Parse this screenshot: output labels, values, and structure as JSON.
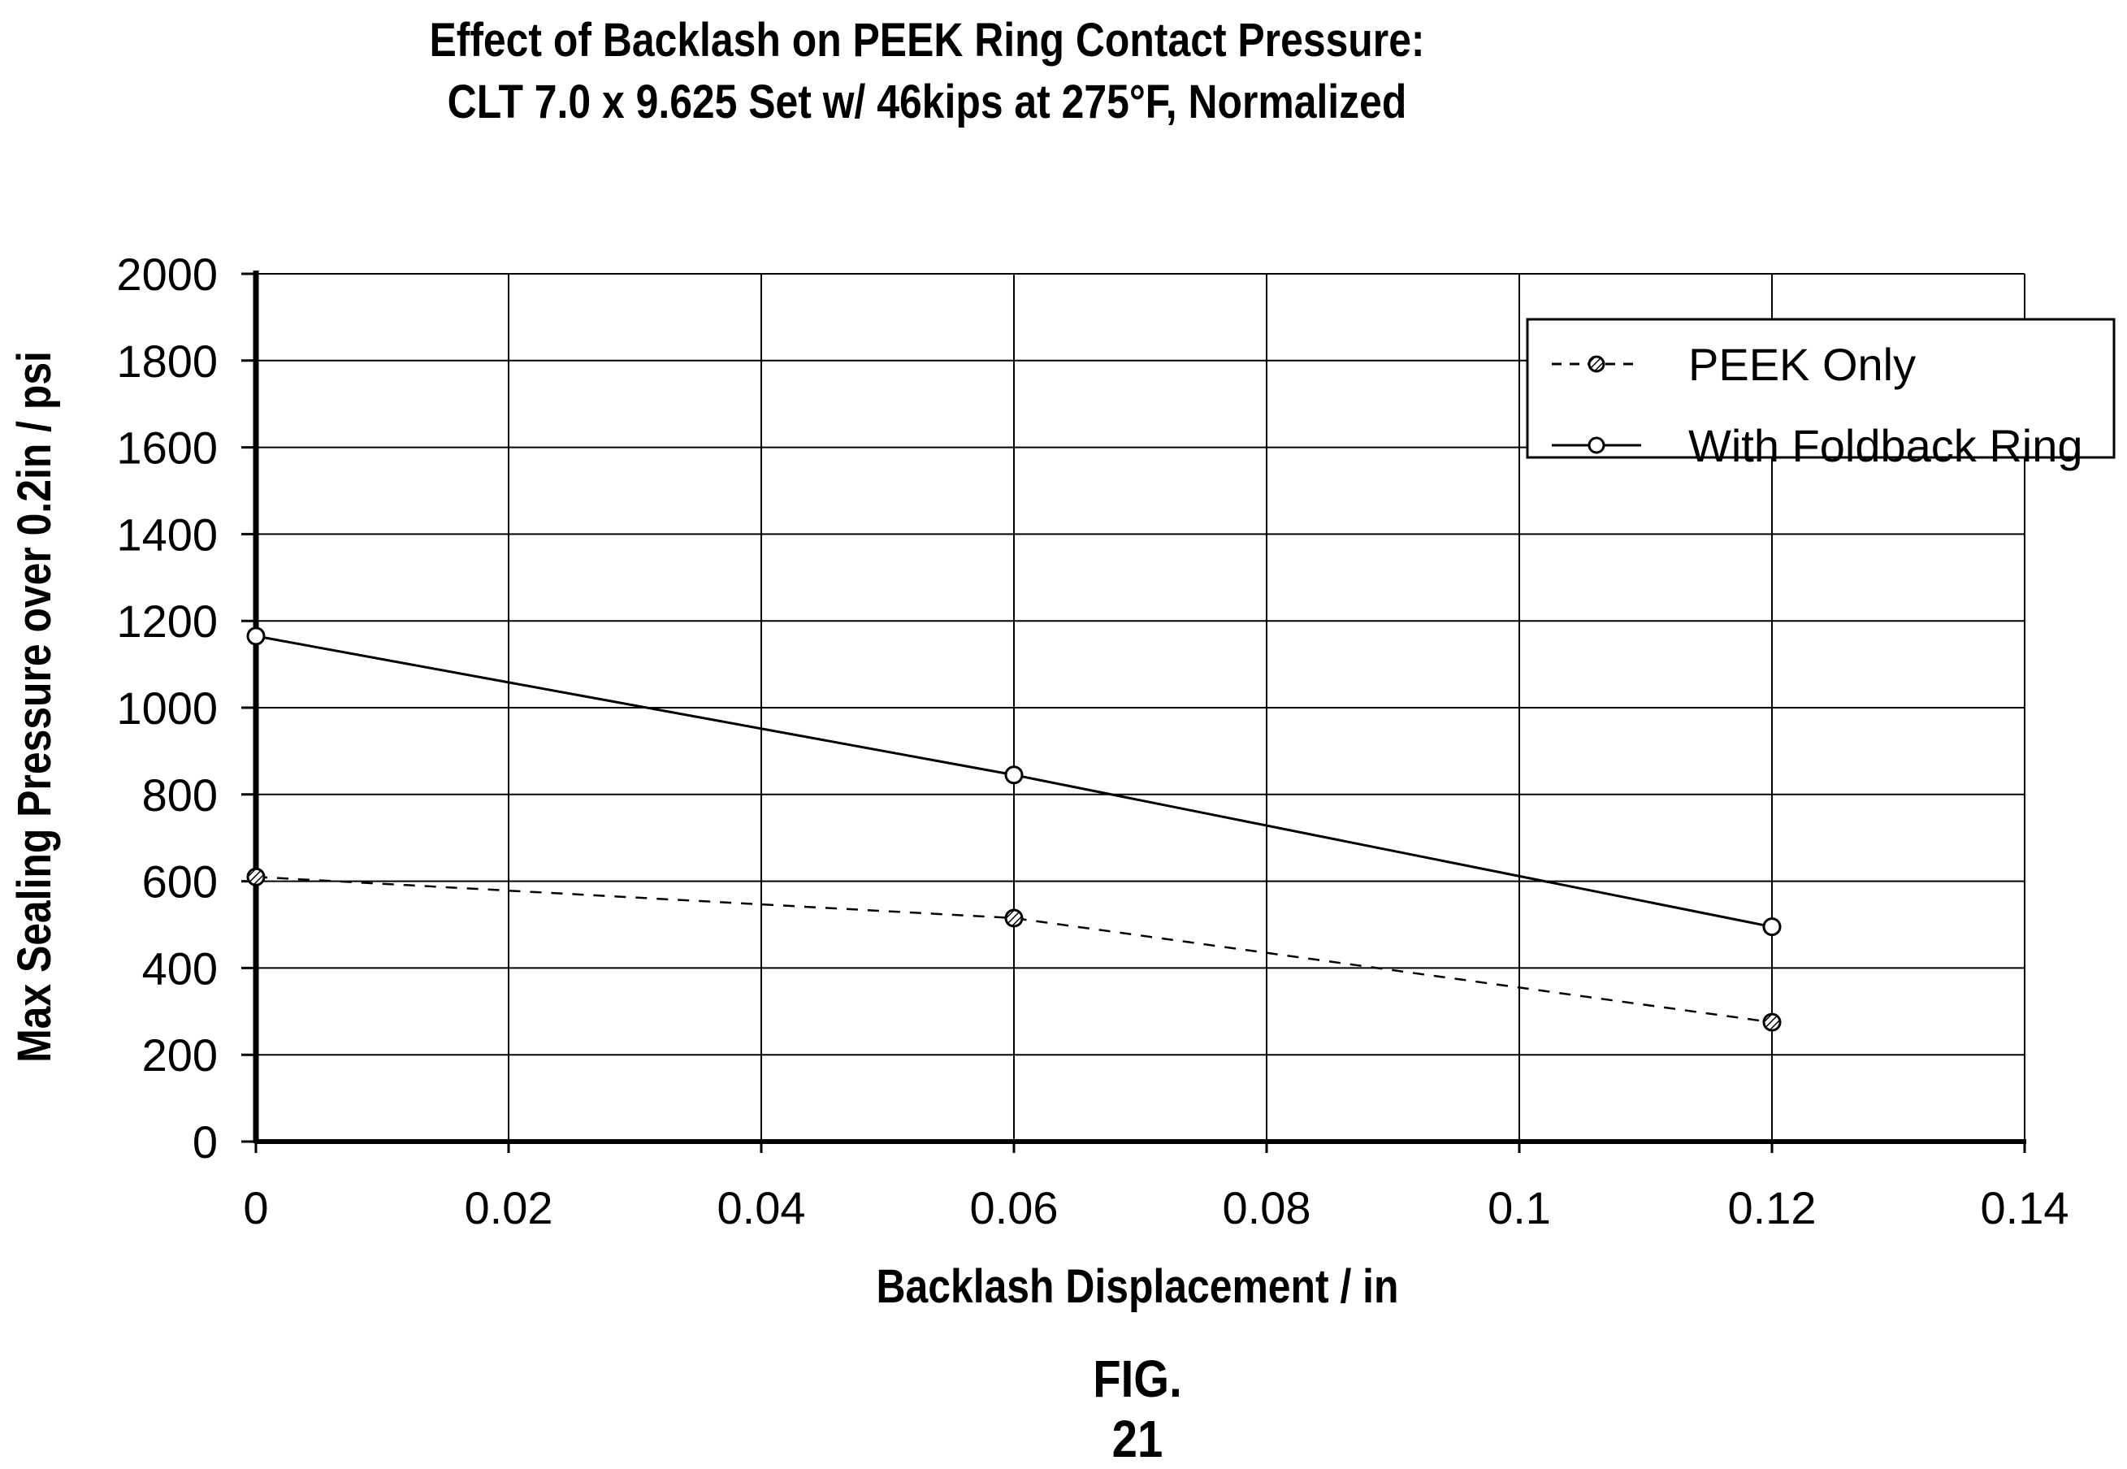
{
  "chart_data": {
    "type": "line",
    "title": "Effect of Backlash on PEEK Ring Contact Pressure:",
    "subtitle": "CLT 7.0 x 9.625 Set w/ 46kips at 275°F, Normalized",
    "xlabel": "Backlash Displacement / in",
    "ylabel": "Max Sealing Pressure over 0.2in / psi",
    "xlim": [
      0,
      0.14
    ],
    "ylim": [
      0,
      2000
    ],
    "xticks": [
      "0",
      "0.02",
      "0.04",
      "0.06",
      "0.08",
      "0.1",
      "0.12",
      "0.14"
    ],
    "yticks": [
      "0",
      "200",
      "400",
      "600",
      "800",
      "1000",
      "1200",
      "1400",
      "1600",
      "1800",
      "2000"
    ],
    "grid": true,
    "legend_position": "top-right",
    "series": [
      {
        "name": "PEEK Only",
        "style": "dashed",
        "marker": "hatched-circle",
        "x": [
          0,
          0.06,
          0.12
        ],
        "y": [
          610,
          515,
          275
        ]
      },
      {
        "name": "With Foldback Ring",
        "style": "solid",
        "marker": "open-circle",
        "x": [
          0,
          0.06,
          0.12
        ],
        "y": [
          1165,
          845,
          495
        ]
      }
    ]
  },
  "figure_label": "FIG. 21"
}
